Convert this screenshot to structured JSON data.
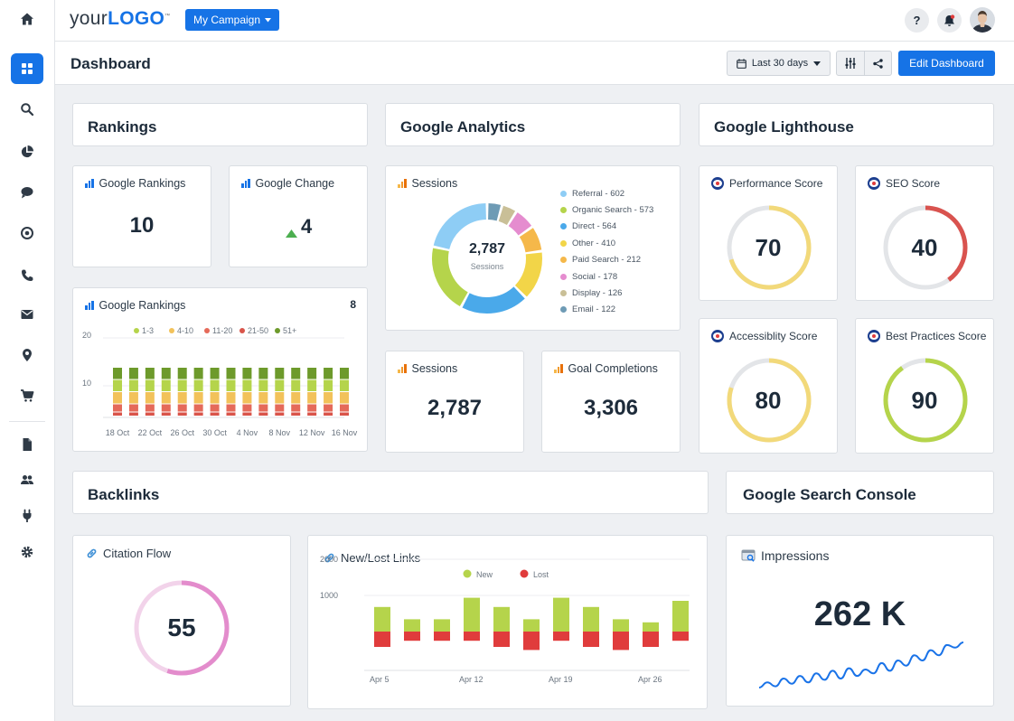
{
  "topbar": {
    "logo_a": "your",
    "logo_b": "LOGO",
    "logo_tm": "™",
    "campaign_label": "My Campaign",
    "help_label": "?"
  },
  "header": {
    "title": "Dashboard",
    "date_range": "Last 30 days",
    "edit_label": "Edit Dashboard"
  },
  "sidebar": {
    "items": [
      "home-icon",
      "grid-icon",
      "search-icon",
      "pie-icon",
      "chat-icon",
      "target-icon",
      "phone-icon",
      "mail-icon",
      "pin-icon",
      "cart-icon",
      "document-icon",
      "users-icon",
      "plug-icon",
      "gear-icon"
    ],
    "active": "grid-icon"
  },
  "sections": {
    "rankings": "Rankings",
    "analytics": "Google Analytics",
    "lighthouse": "Google Lighthouse",
    "backlinks": "Backlinks",
    "search_console": "Google Search Console"
  },
  "rankings": {
    "google_rankings_label": "Google Rankings",
    "google_rankings_value": "10",
    "google_change_label": "Google Change",
    "google_change_value": "4",
    "chart_label": "Google Rankings",
    "chart_count": "8"
  },
  "analytics": {
    "sessions_label": "Sessions",
    "total": "2,787",
    "total_caption": "Sessions",
    "legend": [
      {
        "label": "Referral - 602",
        "color": "#8ecdf5"
      },
      {
        "label": "Organic Search - 573",
        "color": "#b5d44b"
      },
      {
        "label": "Direct - 564",
        "color": "#4aa9ea"
      },
      {
        "label": "Other - 410",
        "color": "#f2d548"
      },
      {
        "label": "Paid Search - 212",
        "color": "#f5b84a"
      },
      {
        "label": "Social - 178",
        "color": "#e58ccf"
      },
      {
        "label": "Display - 126",
        "color": "#c9bf97"
      },
      {
        "label": "Email - 122",
        "color": "#6e9bb5"
      }
    ],
    "sessions_card_label": "Sessions",
    "sessions_card_value": "2,787",
    "goal_label": "Goal Completions",
    "goal_value": "3,306"
  },
  "lighthouse": {
    "performance_label": "Performance Score",
    "performance_value": "70",
    "seo_label": "SEO Score",
    "seo_value": "40",
    "accessibility_label": "Accessiblity Score",
    "accessibility_value": "80",
    "best_practices_label": "Best Practices Score",
    "best_practices_value": "90"
  },
  "backlinks": {
    "citation_label": "Citation Flow",
    "citation_value": "55",
    "links_label": "New/Lost Links"
  },
  "search_console": {
    "impressions_label": "Impressions",
    "impressions_value": "262 K"
  },
  "colors": {
    "accent": "#1673e6",
    "green": "#b5d44b",
    "red": "#e03c3c"
  },
  "chart_data": [
    {
      "type": "bar",
      "stacked": true,
      "categories": [
        "18 Oct",
        "",
        "22 Oct",
        "",
        "26 Oct",
        "",
        "30 Oct",
        "",
        "4 Nov",
        "",
        "8 Nov",
        "",
        "12 Nov",
        "",
        "16 Nov"
      ],
      "tick_labels": [
        "18 Oct",
        "22 Oct",
        "26 Oct",
        "30 Oct",
        "4 Nov",
        "8 Nov",
        "12 Nov",
        "16 Nov"
      ],
      "series": [
        {
          "name": "1-3",
          "color": "#b5d44b",
          "values": [
            3,
            3,
            3,
            3,
            3,
            3,
            3,
            3,
            3,
            3,
            3,
            3,
            3,
            3,
            3
          ]
        },
        {
          "name": "4-10",
          "color": "#f2c25a",
          "values": [
            3,
            3,
            3,
            3,
            3,
            3,
            3,
            3,
            3,
            3,
            3,
            3,
            3,
            3,
            3
          ]
        },
        {
          "name": "11-20",
          "color": "#e56a5a",
          "values": [
            2,
            2,
            2,
            2,
            2,
            2,
            2,
            2,
            2,
            2,
            2,
            2,
            2,
            2,
            2
          ]
        },
        {
          "name": "21-50",
          "color": "#d9544a",
          "values": [
            1,
            1,
            1,
            1,
            1,
            1,
            1,
            1,
            1,
            1,
            1,
            1,
            1,
            1,
            1
          ]
        },
        {
          "name": "51+",
          "color": "#6d9a2b",
          "values": [
            3,
            3,
            3,
            3,
            3,
            3,
            3,
            3,
            3,
            3,
            3,
            3,
            3,
            3,
            3
          ]
        }
      ],
      "y_ticks": [
        "20",
        "10"
      ],
      "ylim": [
        0,
        20
      ]
    },
    {
      "type": "pie",
      "donut": true,
      "labels": [
        "Referral",
        "Organic Search",
        "Direct",
        "Other",
        "Paid Search",
        "Social",
        "Display",
        "Email"
      ],
      "values": [
        602,
        573,
        564,
        410,
        212,
        178,
        126,
        122
      ]
    },
    {
      "type": "bar",
      "categories": [
        "Apr 5",
        "",
        "",
        "Apr 12",
        "",
        "",
        "Apr 19",
        "",
        "",
        "Apr 26",
        ""
      ],
      "tick_labels": [
        "Apr 5",
        "Apr 12",
        "Apr 19",
        "Apr 26"
      ],
      "series": [
        {
          "name": "New",
          "color": "#b5d44b",
          "values": [
            800,
            400,
            400,
            1100,
            800,
            400,
            1100,
            800,
            400,
            300,
            1000
          ]
        },
        {
          "name": "Lost",
          "color": "#e03c3c",
          "values": [
            -500,
            -300,
            -300,
            -300,
            -500,
            -600,
            -300,
            -500,
            -600,
            -500,
            -300
          ]
        }
      ],
      "y_ticks": [
        "2000",
        "1000"
      ],
      "ylim": [
        -1000,
        2000
      ]
    },
    {
      "type": "line",
      "values": [
        5,
        9,
        6,
        12,
        8,
        14,
        9,
        16,
        11,
        18,
        12,
        20,
        14,
        19,
        16,
        24,
        18,
        26,
        22,
        30,
        26,
        34,
        30,
        38,
        36,
        40
      ],
      "title": "Impressions"
    }
  ]
}
